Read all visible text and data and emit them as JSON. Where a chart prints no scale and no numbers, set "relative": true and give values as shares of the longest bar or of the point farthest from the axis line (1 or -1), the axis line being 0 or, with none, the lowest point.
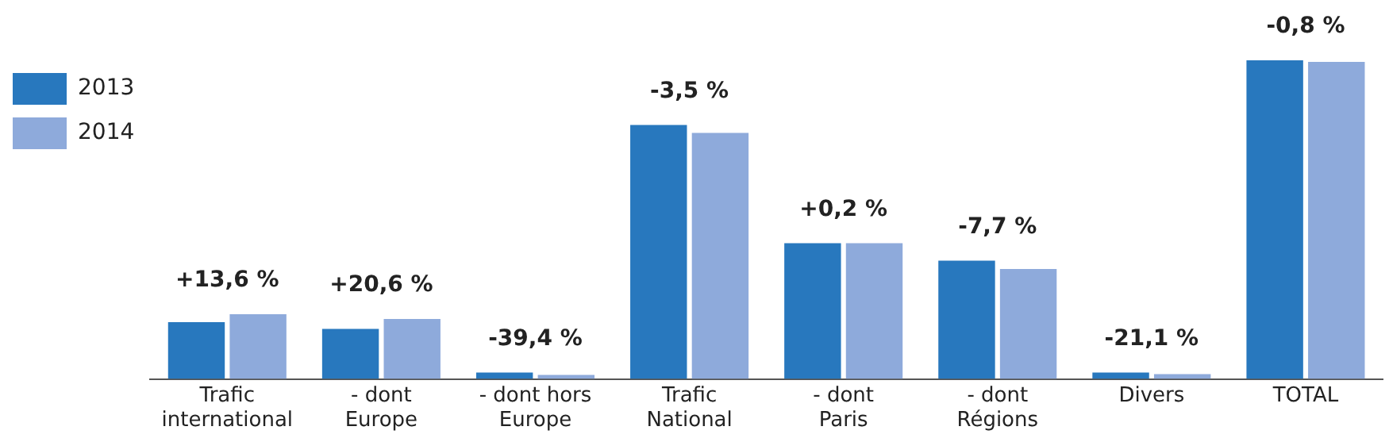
{
  "chart_data": {
    "type": "bar",
    "relative": true,
    "categories": [
      "Trafic international",
      "- dont Europe",
      "- dont hors Europe",
      "Trafic National",
      "- dont Paris",
      "- dont Régions",
      "Divers",
      "TOTAL"
    ],
    "series": [
      {
        "name": "2013",
        "color": "#2878be",
        "values": [
          0.178,
          0.157,
          0.02,
          0.797,
          0.426,
          0.371,
          0.02,
          1
        ]
      },
      {
        "name": "2014",
        "color": "#8eaadb",
        "values": [
          0.203,
          0.188,
          0.013,
          0.772,
          0.426,
          0.345,
          0.015,
          0.995
        ]
      }
    ],
    "legend": "top left",
    "grid": false,
    "annotations": [
      "+13,6 %",
      "+20,6 %",
      "-39,4 %",
      "-3,5 %",
      "+0,2 %",
      "-7,7 %",
      "-21,1 %",
      "-0,8 %"
    ]
  }
}
